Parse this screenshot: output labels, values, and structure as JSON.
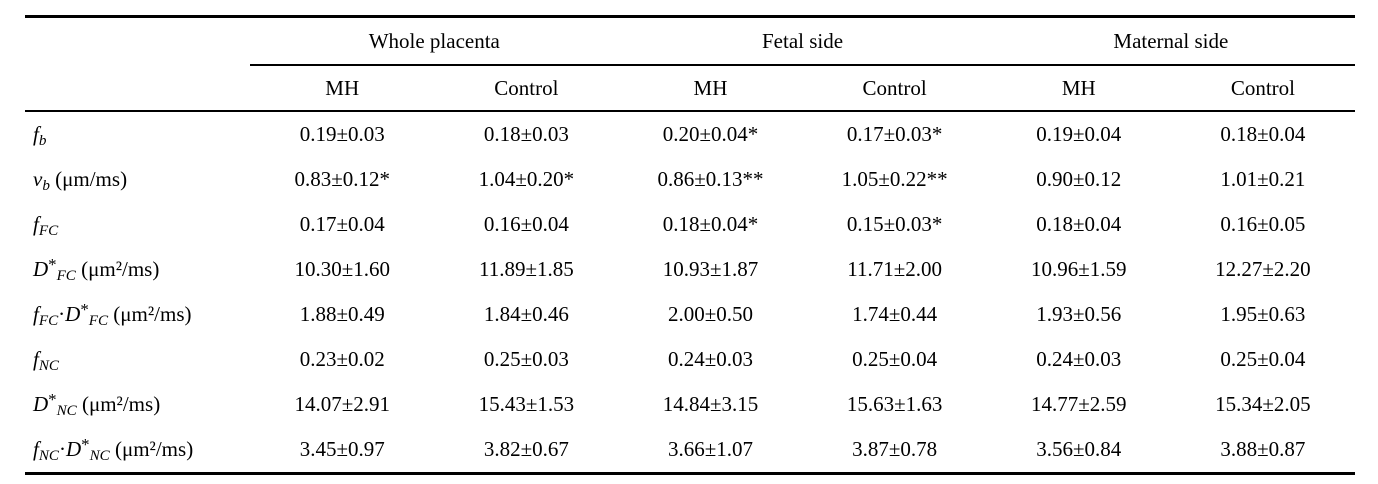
{
  "chart_data": {
    "type": "table",
    "groups": [
      "Whole placenta",
      "Fetal side",
      "Maternal side"
    ],
    "sub_headers": [
      "MH",
      "Control",
      "MH",
      "Control",
      "MH",
      "Control"
    ],
    "rows": [
      {
        "label_plain": "fb",
        "label_parts": [
          {
            "s": "it",
            "x": "f"
          },
          {
            "s": "subit",
            "x": "b"
          }
        ],
        "values": [
          "0.19±0.03",
          "0.18±0.03",
          "0.20±0.04*",
          "0.17±0.03*",
          "0.19±0.04",
          "0.18±0.04"
        ]
      },
      {
        "label_plain": "vb (μm/ms)",
        "label_parts": [
          {
            "s": "it",
            "x": "v"
          },
          {
            "s": "subit",
            "x": "b"
          },
          {
            "s": "n",
            "x": " (μm/ms)"
          }
        ],
        "values": [
          "0.83±0.12*",
          "1.04±0.20*",
          "0.86±0.13**",
          "1.05±0.22**",
          "0.90±0.12",
          "1.01±0.21"
        ]
      },
      {
        "label_plain": "fFC",
        "label_parts": [
          {
            "s": "it",
            "x": "f"
          },
          {
            "s": "subit",
            "x": "FC"
          }
        ],
        "values": [
          "0.17±0.04",
          "0.16±0.04",
          "0.18±0.04*",
          "0.15±0.03*",
          "0.18±0.04",
          "0.16±0.05"
        ]
      },
      {
        "label_plain": "D*FC (μm²/ms)",
        "label_parts": [
          {
            "s": "it",
            "x": "D"
          },
          {
            "s": "sup",
            "x": "*"
          },
          {
            "s": "subit",
            "x": "FC"
          },
          {
            "s": "n",
            "x": " (μm²/ms)"
          }
        ],
        "values": [
          "10.30±1.60",
          "11.89±1.85",
          "10.93±1.87",
          "11.71±2.00",
          "10.96±1.59",
          "12.27±2.20"
        ]
      },
      {
        "label_plain": "fFC·D*FC (μm²/ms)",
        "label_parts": [
          {
            "s": "it",
            "x": "f"
          },
          {
            "s": "subit",
            "x": "FC"
          },
          {
            "s": "n",
            "x": "·"
          },
          {
            "s": "it",
            "x": "D"
          },
          {
            "s": "sup",
            "x": "*"
          },
          {
            "s": "subit",
            "x": "FC"
          },
          {
            "s": "n",
            "x": " (μm²/ms)"
          }
        ],
        "values": [
          "1.88±0.49",
          "1.84±0.46",
          "2.00±0.50",
          "1.74±0.44",
          "1.93±0.56",
          "1.95±0.63"
        ]
      },
      {
        "label_plain": "fNC",
        "label_parts": [
          {
            "s": "it",
            "x": "f"
          },
          {
            "s": "subit",
            "x": "NC"
          }
        ],
        "values": [
          "0.23±0.02",
          "0.25±0.03",
          "0.24±0.03",
          "0.25±0.04",
          "0.24±0.03",
          "0.25±0.04"
        ]
      },
      {
        "label_plain": "D*NC (μm²/ms)",
        "label_parts": [
          {
            "s": "it",
            "x": "D"
          },
          {
            "s": "sup",
            "x": "*"
          },
          {
            "s": "subit",
            "x": "NC"
          },
          {
            "s": "n",
            "x": " (μm²/ms)"
          }
        ],
        "values": [
          "14.07±2.91",
          "15.43±1.53",
          "14.84±3.15",
          "15.63±1.63",
          "14.77±2.59",
          "15.34±2.05"
        ]
      },
      {
        "label_plain": "fNC·D*NC (μm²/ms)",
        "label_parts": [
          {
            "s": "it",
            "x": "f"
          },
          {
            "s": "subit",
            "x": "NC"
          },
          {
            "s": "n",
            "x": "·"
          },
          {
            "s": "it",
            "x": "D"
          },
          {
            "s": "sup",
            "x": "*"
          },
          {
            "s": "subit",
            "x": "NC"
          },
          {
            "s": "n",
            "x": " (μm²/ms)"
          }
        ],
        "values": [
          "3.45±0.97",
          "3.82±0.67",
          "3.66±1.07",
          "3.87±0.78",
          "3.56±0.84",
          "3.88±0.87"
        ]
      }
    ]
  }
}
